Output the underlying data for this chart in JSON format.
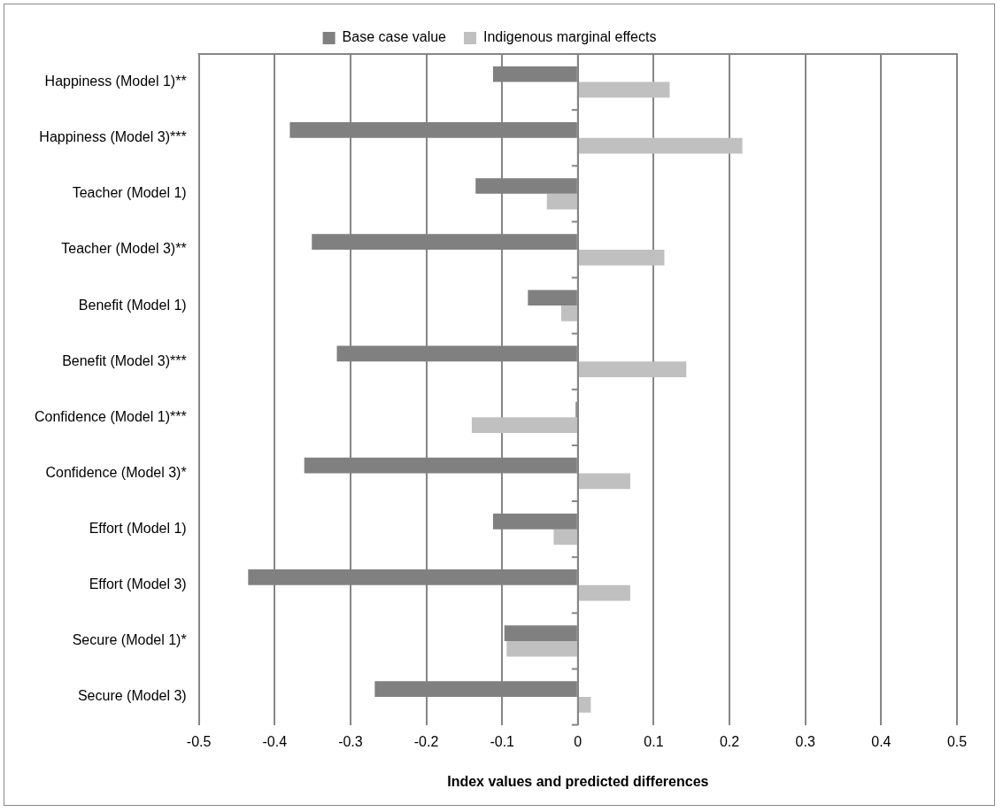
{
  "chart_data": {
    "type": "bar",
    "orientation": "horizontal",
    "xlabel": "Index values and predicted differences",
    "categories": [
      "Happiness (Model 1)**",
      "Happiness (Model 3)***",
      "Teacher (Model 1)",
      "Teacher (Model 3)**",
      "Benefit (Model 1)",
      "Benefit (Model 3)***",
      "Confidence (Model 1)***",
      "Confidence (Model 3)*",
      "Effort (Model 1)",
      "Effort (Model 3)",
      "Secure (Model 1)*",
      "Secure (Model 3)"
    ],
    "series": [
      {
        "name": "Base case value",
        "color": "#808080",
        "values": [
          -0.112,
          -0.38,
          -0.135,
          -0.351,
          -0.066,
          -0.318,
          -0.003,
          -0.361,
          -0.112,
          -0.435,
          -0.097,
          -0.268
        ]
      },
      {
        "name": "Indigenous marginal effects",
        "color": "#c0c0c0",
        "values": [
          0.121,
          0.217,
          -0.041,
          0.114,
          -0.022,
          0.143,
          -0.14,
          0.069,
          -0.032,
          0.069,
          -0.094,
          0.017
        ]
      }
    ],
    "xlim": [
      -0.5,
      0.5
    ],
    "xticks": [
      -0.5,
      -0.4,
      -0.3,
      -0.2,
      -0.1,
      0,
      0.1,
      0.2,
      0.3,
      0.4,
      0.5
    ],
    "grid": "x",
    "legend": "top"
  }
}
